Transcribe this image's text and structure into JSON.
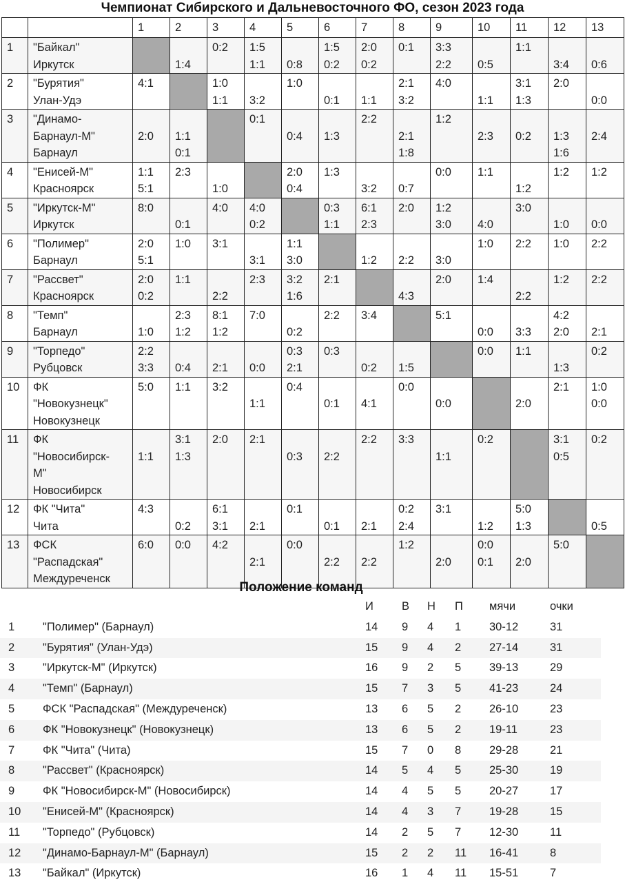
{
  "title": "Чемпионат Сибирского и Дальневосточного ФО, сезон 2023 года",
  "cross_table": {
    "columns": [
      "1",
      "2",
      "3",
      "4",
      "5",
      "6",
      "7",
      "8",
      "9",
      "10",
      "11",
      "12",
      "13"
    ],
    "diagonal_color": "#a9a9a9",
    "rows": [
      {
        "num": "1",
        "name": [
          "\"Байкал\"",
          "Иркутск"
        ],
        "cells": [
          null,
          [
            "",
            "1:4"
          ],
          [
            "0:2",
            ""
          ],
          [
            "1:5",
            "1:1"
          ],
          [
            "",
            "0:8"
          ],
          [
            "1:5",
            "0:2"
          ],
          [
            "2:0",
            "0:2"
          ],
          [
            "0:1",
            ""
          ],
          [
            "3:3",
            "2:2"
          ],
          [
            "",
            "0:5"
          ],
          [
            "1:1",
            ""
          ],
          [
            "",
            "3:4"
          ],
          [
            "",
            "0:6"
          ]
        ]
      },
      {
        "num": "2",
        "name": [
          "\"Бурятия\"",
          "Улан-Удэ"
        ],
        "cells": [
          [
            "4:1",
            ""
          ],
          null,
          [
            "1:0",
            "1:1"
          ],
          [
            "",
            "3:2"
          ],
          [
            "1:0",
            ""
          ],
          [
            "",
            "0:1"
          ],
          [
            "",
            "1:1"
          ],
          [
            "2:1",
            "3:2"
          ],
          [
            "4:0",
            ""
          ],
          [
            "",
            "1:1"
          ],
          [
            "3:1",
            "1:3"
          ],
          [
            "2:0",
            ""
          ],
          [
            "",
            "0:0"
          ]
        ]
      },
      {
        "num": "3",
        "name": [
          "\"Динамо-",
          "Барнаул-М\"",
          "Барнаул"
        ],
        "cells": [
          [
            "",
            "2:0"
          ],
          [
            "",
            "1:1",
            "0:1"
          ],
          null,
          [
            "0:1"
          ],
          [
            "",
            "0:4"
          ],
          [
            "",
            "1:3"
          ],
          [
            "2:2"
          ],
          [
            "",
            "2:1",
            "1:8"
          ],
          [
            "1:2"
          ],
          [
            "",
            "2:3"
          ],
          [
            "",
            "0:2"
          ],
          [
            "",
            "1:3",
            "1:6"
          ],
          [
            "",
            "2:4"
          ]
        ]
      },
      {
        "num": "4",
        "name": [
          "\"Енисей-М\"",
          "Красноярск"
        ],
        "cells": [
          [
            "1:1",
            "5:1"
          ],
          [
            "2:3",
            ""
          ],
          [
            "",
            "1:0"
          ],
          null,
          [
            "2:0",
            "0:4"
          ],
          [
            "1:3",
            ""
          ],
          [
            "",
            "3:2"
          ],
          [
            "",
            "0:7"
          ],
          [
            "0:0",
            ""
          ],
          [
            "1:1",
            ""
          ],
          [
            "",
            "1:2"
          ],
          [
            "1:2",
            ""
          ],
          [
            "1:2",
            ""
          ]
        ]
      },
      {
        "num": "5",
        "name": [
          "\"Иркутск-М\"",
          "Иркутск"
        ],
        "cells": [
          [
            "8:0",
            ""
          ],
          [
            "",
            "0:1"
          ],
          [
            "4:0",
            ""
          ],
          [
            "4:0",
            "0:2"
          ],
          null,
          [
            "0:3",
            "1:1"
          ],
          [
            "6:1",
            "2:3"
          ],
          [
            "2:0",
            ""
          ],
          [
            "1:2",
            "3:0"
          ],
          [
            "",
            "4:0"
          ],
          [
            "3:0",
            ""
          ],
          [
            "",
            "1:0"
          ],
          [
            "",
            "0:0"
          ]
        ]
      },
      {
        "num": "6",
        "name": [
          "\"Полимер\"",
          "Барнаул"
        ],
        "cells": [
          [
            "2:0",
            "5:1"
          ],
          [
            "1:0",
            ""
          ],
          [
            "3:1",
            ""
          ],
          [
            "",
            "3:1"
          ],
          [
            "1:1",
            "3:0"
          ],
          null,
          [
            "",
            "1:2"
          ],
          [
            "",
            "2:2"
          ],
          [
            "",
            "3:0"
          ],
          [
            "1:0",
            ""
          ],
          [
            "2:2",
            ""
          ],
          [
            "1:0",
            ""
          ],
          [
            "2:2",
            ""
          ]
        ]
      },
      {
        "num": "7",
        "name": [
          "\"Рассвет\"",
          "Красноярск"
        ],
        "cells": [
          [
            "2:0",
            "0:2"
          ],
          [
            "1:1",
            ""
          ],
          [
            "",
            "2:2"
          ],
          [
            "2:3",
            ""
          ],
          [
            "3:2",
            "1:6"
          ],
          [
            "2:1",
            ""
          ],
          null,
          [
            "",
            "4:3"
          ],
          [
            "2:0",
            ""
          ],
          [
            "1:4",
            ""
          ],
          [
            "",
            "2:2"
          ],
          [
            "1:2",
            ""
          ],
          [
            "2:2",
            ""
          ]
        ]
      },
      {
        "num": "8",
        "name": [
          "\"Темп\"",
          "Барнаул"
        ],
        "cells": [
          [
            "",
            "1:0"
          ],
          [
            "2:3",
            "1:2"
          ],
          [
            "8:1",
            "1:2"
          ],
          [
            "7:0",
            ""
          ],
          [
            "",
            "0:2"
          ],
          [
            "2:2",
            ""
          ],
          [
            "3:4",
            ""
          ],
          null,
          [
            "5:1",
            ""
          ],
          [
            "",
            "0:0"
          ],
          [
            "",
            "3:3"
          ],
          [
            "4:2",
            "2:0"
          ],
          [
            "",
            "2:1"
          ]
        ]
      },
      {
        "num": "9",
        "name": [
          "\"Торпедо\"",
          "Рубцовск"
        ],
        "cells": [
          [
            "2:2",
            "3:3"
          ],
          [
            "",
            "0:4"
          ],
          [
            "",
            "2:1"
          ],
          [
            "",
            "0:0"
          ],
          [
            "0:3",
            "2:1"
          ],
          [
            "0:3",
            ""
          ],
          [
            "",
            "0:2"
          ],
          [
            "",
            "1:5"
          ],
          null,
          [
            "0:0",
            ""
          ],
          [
            "1:1",
            ""
          ],
          [
            "",
            "1:3"
          ],
          [
            "0:2",
            ""
          ]
        ]
      },
      {
        "num": "10",
        "name": [
          "ФК",
          "\"Новокузнецк\"",
          "Новокузнецк"
        ],
        "cells": [
          [
            "5:0"
          ],
          [
            "1:1"
          ],
          [
            "3:2"
          ],
          [
            "",
            "1:1"
          ],
          [
            "0:4"
          ],
          [
            "",
            "0:1"
          ],
          [
            "",
            "4:1"
          ],
          [
            "0:0"
          ],
          [
            "",
            "0:0"
          ],
          null,
          [
            "",
            "2:0"
          ],
          [
            "2:1"
          ],
          [
            "1:0",
            "0:0"
          ]
        ]
      },
      {
        "num": "11",
        "name": [
          "ФК",
          "\"Новосибирск-",
          "М\"",
          "Новосибирск"
        ],
        "cells": [
          [
            "",
            "1:1"
          ],
          [
            "3:1",
            "1:3"
          ],
          [
            "2:0"
          ],
          [
            "2:1"
          ],
          [
            "",
            "0:3"
          ],
          [
            "",
            "2:2"
          ],
          [
            "2:2"
          ],
          [
            "3:3"
          ],
          [
            "",
            "1:1"
          ],
          [
            "0:2"
          ],
          null,
          [
            "3:1",
            "0:5"
          ],
          [
            "0:2"
          ]
        ]
      },
      {
        "num": "12",
        "name": [
          "ФК \"Чита\"",
          "Чита"
        ],
        "cells": [
          [
            "4:3",
            ""
          ],
          [
            "",
            "0:2"
          ],
          [
            "6:1",
            "3:1"
          ],
          [
            "",
            "2:1"
          ],
          [
            "0:1",
            ""
          ],
          [
            "",
            "0:1"
          ],
          [
            "",
            "2:1"
          ],
          [
            "0:2",
            "2:4"
          ],
          [
            "3:1",
            ""
          ],
          [
            "",
            "1:2"
          ],
          [
            "5:0",
            "1:3"
          ],
          null,
          [
            "",
            "0:5"
          ]
        ]
      },
      {
        "num": "13",
        "name": [
          "ФСК",
          "\"Распадская\"",
          "Междуреченск"
        ],
        "cells": [
          [
            "6:0"
          ],
          [
            "0:0"
          ],
          [
            "4:2"
          ],
          [
            "",
            "2:1"
          ],
          [
            "0:0"
          ],
          [
            "",
            "2:2"
          ],
          [
            "",
            "2:2"
          ],
          [
            "1:2"
          ],
          [
            "",
            "2:0"
          ],
          [
            "0:0",
            "0:1"
          ],
          [
            "",
            "2:0"
          ],
          [
            "5:0"
          ],
          null
        ]
      }
    ]
  },
  "standings": {
    "title": "Положение команд",
    "headers": [
      "И",
      "В",
      "Н",
      "П",
      "мячи",
      "очки"
    ],
    "rows": [
      [
        "1",
        "\"Полимер\" (Барнаул)",
        "14",
        "9",
        "4",
        "1",
        "30-12",
        "31"
      ],
      [
        "2",
        "\"Бурятия\" (Улан-Удэ)",
        "15",
        "9",
        "4",
        "2",
        "27-14",
        "31"
      ],
      [
        "3",
        "\"Иркутск-М\" (Иркутск)",
        "16",
        "9",
        "2",
        "5",
        "39-13",
        "29"
      ],
      [
        "4",
        "\"Темп\" (Барнаул)",
        "15",
        "7",
        "3",
        "5",
        "41-23",
        "24"
      ],
      [
        "5",
        "ФСК \"Распадская\" (Междуреченск)",
        "13",
        "6",
        "5",
        "2",
        "26-10",
        "23"
      ],
      [
        "6",
        "ФК \"Новокузнецк\" (Новокузнецк)",
        "13",
        "6",
        "5",
        "2",
        "19-11",
        "23"
      ],
      [
        "7",
        "ФК \"Чита\" (Чита)",
        "15",
        "7",
        "0",
        "8",
        "29-28",
        "21"
      ],
      [
        "8",
        "\"Рассвет\" (Красноярск)",
        "14",
        "5",
        "4",
        "5",
        "25-30",
        "19"
      ],
      [
        "9",
        "ФК \"Новосибирск-М\" (Новосибирск)",
        "14",
        "4",
        "5",
        "5",
        "20-27",
        "17"
      ],
      [
        "10",
        "\"Енисей-М\" (Красноярск)",
        "14",
        "4",
        "3",
        "7",
        "19-28",
        "15"
      ],
      [
        "11",
        "\"Торпедо\" (Рубцовск)",
        "14",
        "2",
        "5",
        "7",
        "12-30",
        "11"
      ],
      [
        "12",
        "\"Динамо-Барнаул-М\" (Барнаул)",
        "15",
        "2",
        "2",
        "11",
        "16-41",
        "8"
      ],
      [
        "13",
        "\"Байкал\" (Иркутск)",
        "16",
        "1",
        "4",
        "11",
        "15-51",
        "7"
      ]
    ]
  }
}
